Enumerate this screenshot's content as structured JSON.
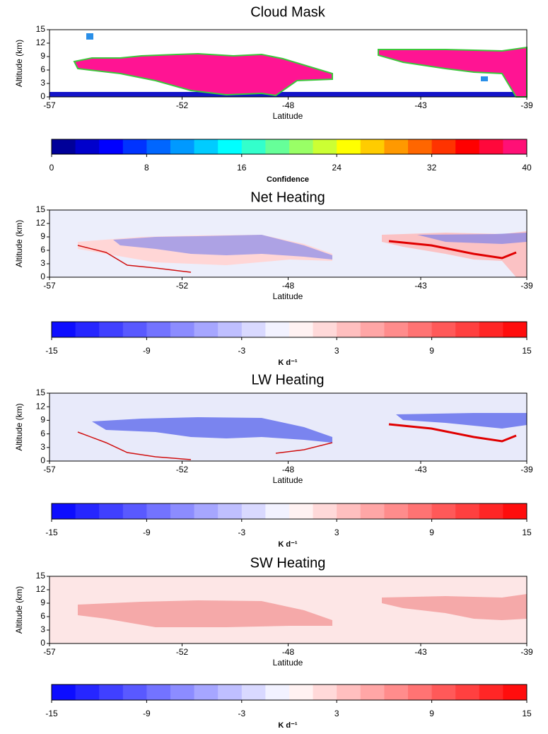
{
  "chart_data": [
    {
      "type": "heatmap",
      "title": "Cloud Mask",
      "ylabel": "Altitude (km)",
      "xlabel": "Latitude",
      "xlim": [
        -57,
        -39
      ],
      "xticks": [
        -57,
        -52,
        -48,
        -43,
        -39
      ],
      "ylim": [
        0,
        15
      ],
      "yticks": [
        0,
        3,
        6,
        9,
        12,
        15
      ],
      "colorbar": {
        "label": "Confidence",
        "lim": [
          0,
          40
        ],
        "ticks": [
          0,
          8,
          16,
          24,
          32,
          40
        ],
        "levels": 20,
        "colors": [
          "#00007f",
          "#0000ff",
          "#0080ff",
          "#00ffff",
          "#80ff80",
          "#ffff00",
          "#ff8000",
          "#ff0000",
          "#ff1493"
        ]
      }
    },
    {
      "type": "heatmap",
      "title": "Net Heating",
      "ylabel": "Altitude (km)",
      "xlabel": "Latitude",
      "xlim": [
        -57,
        -39
      ],
      "xticks": [
        -57,
        -52,
        -48,
        -43,
        -39
      ],
      "ylim": [
        0,
        15
      ],
      "yticks": [
        0,
        3,
        6,
        9,
        12,
        15
      ],
      "colorbar": {
        "label": "K d⁻¹",
        "lim": [
          -15,
          15
        ],
        "ticks": [
          -15,
          -9,
          -3,
          3,
          9,
          15
        ],
        "levels": 20,
        "colors": [
          "#0000ff",
          "#ffffff",
          "#ff0000"
        ]
      }
    },
    {
      "type": "heatmap",
      "title": "LW Heating",
      "ylabel": "Altitude (km)",
      "xlabel": "Latitude",
      "xlim": [
        -57,
        -39
      ],
      "xticks": [
        -57,
        -52,
        -48,
        -43,
        -39
      ],
      "ylim": [
        0,
        15
      ],
      "yticks": [
        0,
        3,
        6,
        9,
        12,
        15
      ],
      "colorbar": {
        "label": "K d⁻¹",
        "lim": [
          -15,
          15
        ],
        "ticks": [
          -15,
          -9,
          -3,
          3,
          9,
          15
        ],
        "levels": 20,
        "colors": [
          "#0000ff",
          "#ffffff",
          "#ff0000"
        ]
      }
    },
    {
      "type": "heatmap",
      "title": "SW Heating",
      "ylabel": "Altitude (km)",
      "xlabel": "Latitude",
      "xlim": [
        -57,
        -39
      ],
      "xticks": [
        -57,
        -52,
        -48,
        -43,
        -39
      ],
      "ylim": [
        0,
        15
      ],
      "yticks": [
        0,
        3,
        6,
        9,
        12,
        15
      ],
      "colorbar": {
        "label": "K d⁻¹",
        "lim": [
          -15,
          15
        ],
        "ticks": [
          -15,
          -9,
          -3,
          3,
          9,
          15
        ],
        "levels": 20,
        "colors": [
          "#0000ff",
          "#ffffff",
          "#ff0000"
        ]
      }
    }
  ]
}
